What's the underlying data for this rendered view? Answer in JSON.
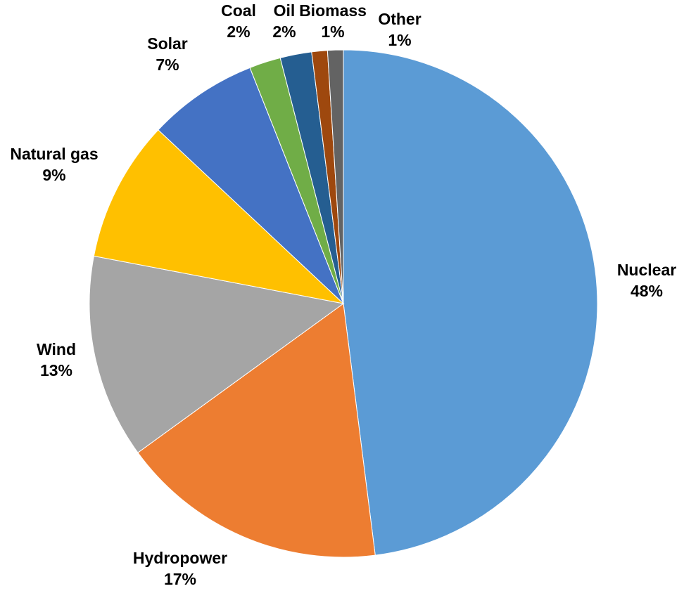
{
  "chart_data": {
    "type": "pie",
    "title": "",
    "legend": "none",
    "start_angle_deg": 0,
    "direction": "clockwise",
    "slices": [
      {
        "name": "Nuclear",
        "value": 48,
        "label": "48%",
        "color": "#5B9BD5"
      },
      {
        "name": "Hydropower",
        "value": 17,
        "label": "17%",
        "color": "#ED7D31"
      },
      {
        "name": "Wind",
        "value": 13,
        "label": "13%",
        "color": "#A5A5A5"
      },
      {
        "name": "Natural gas",
        "value": 9,
        "label": "9%",
        "color": "#FFC000"
      },
      {
        "name": "Solar",
        "value": 7,
        "label": "7%",
        "color": "#4472C4"
      },
      {
        "name": "Coal",
        "value": 2,
        "label": "2%",
        "color": "#70AD47"
      },
      {
        "name": "Oil",
        "value": 2,
        "label": "2%",
        "color": "#255E91"
      },
      {
        "name": "Biomass",
        "value": 1,
        "label": "1%",
        "color": "#9E480E"
      },
      {
        "name": "Other",
        "value": 1,
        "label": "1%",
        "color": "#636363"
      }
    ]
  }
}
